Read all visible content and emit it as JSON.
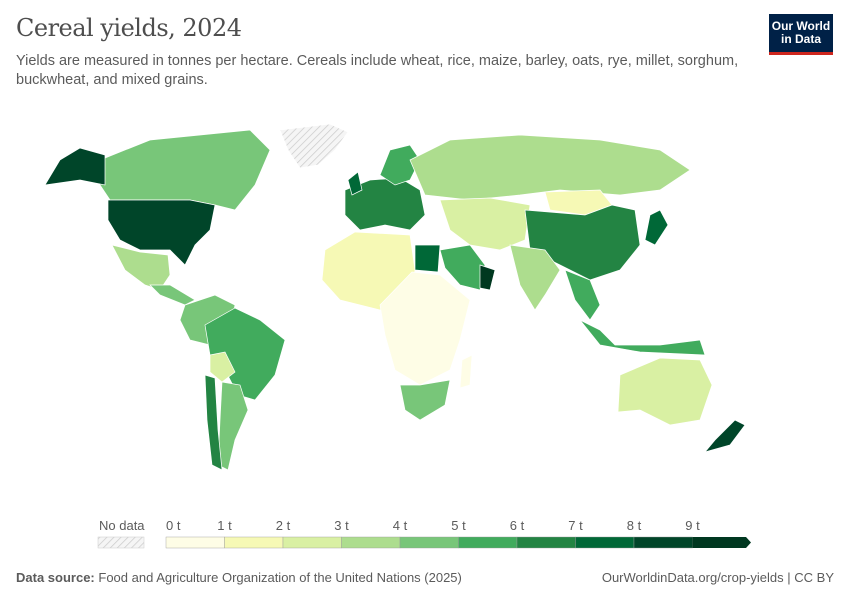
{
  "header": {
    "title": "Cereal yields, 2024",
    "subtitle": "Yields are measured in tonnes per hectare. Cereals include wheat, rice, maize, barley, oats, rye, millet, sorghum, buckwheat, and mixed grains."
  },
  "logo": {
    "line1": "Our World",
    "line2": "in Data",
    "bg_color": "#002147",
    "accent_color": "#ce261e"
  },
  "legend": {
    "no_data_label": "No data",
    "ticks": [
      "0 t",
      "1 t",
      "2 t",
      "3 t",
      "4 t",
      "5 t",
      "6 t",
      "7 t",
      "8 t",
      "9 t"
    ],
    "bins": [
      {
        "range": "0–1 t",
        "color": "#fefde6"
      },
      {
        "range": "1–2 t",
        "color": "#f6f9b5"
      },
      {
        "range": "2–3 t",
        "color": "#d9f0a3"
      },
      {
        "range": "3–4 t",
        "color": "#addd8e"
      },
      {
        "range": "4–5 t",
        "color": "#78c679"
      },
      {
        "range": "5–6 t",
        "color": "#41ab5d"
      },
      {
        "range": "6–7 t",
        "color": "#238443"
      },
      {
        "range": "7–8 t",
        "color": "#006837"
      },
      {
        "range": "8–9 t",
        "color": "#004529"
      },
      {
        "range": ">9 t",
        "color": "#003820"
      }
    ]
  },
  "footer": {
    "source_label": "Data source:",
    "source_text": "Food and Agriculture Organization of the United Nations (2025)",
    "url": "OurWorldinData.org/crop-yields | CC BY"
  }
}
